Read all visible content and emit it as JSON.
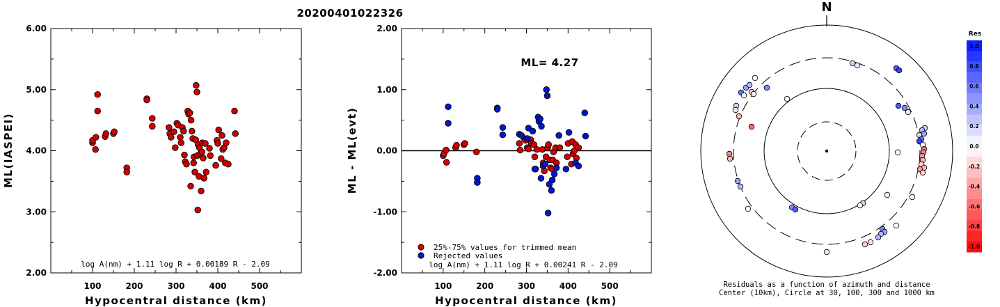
{
  "event_title": "20200401022326",
  "chart_data": [
    {
      "type": "scatter",
      "ylabel": "ML(IASPEI)",
      "xlabel": "Hypocentral distance (km)",
      "xlim": [
        0,
        600
      ],
      "ylim": [
        2.0,
        6.0
      ],
      "xticks": [
        "100",
        "200",
        "300",
        "400",
        "500"
      ],
      "yticks": [
        "2.00",
        "3.00",
        "4.00",
        "5.00",
        "6.00"
      ],
      "formula": "log A(nm) + 1.11 log R + 0.00189 R - 2.09",
      "point_color": "#d40000",
      "points": [
        [
          100,
          4.13
        ],
        [
          100,
          4.17
        ],
        [
          107,
          4.02
        ],
        [
          108,
          4.22
        ],
        [
          112,
          4.92
        ],
        [
          112,
          4.65
        ],
        [
          130,
          4.23
        ],
        [
          132,
          4.28
        ],
        [
          150,
          4.28
        ],
        [
          152,
          4.31
        ],
        [
          182,
          3.72
        ],
        [
          182,
          3.65
        ],
        [
          230,
          4.85
        ],
        [
          230,
          4.83
        ],
        [
          243,
          4.53
        ],
        [
          243,
          4.4
        ],
        [
          283,
          4.38
        ],
        [
          285,
          4.28
        ],
        [
          288,
          4.22
        ],
        [
          295,
          4.31
        ],
        [
          298,
          4.05
        ],
        [
          302,
          4.45
        ],
        [
          305,
          4.42
        ],
        [
          310,
          4.22
        ],
        [
          312,
          4.13
        ],
        [
          315,
          4.38
        ],
        [
          318,
          4.32
        ],
        [
          320,
          3.93
        ],
        [
          322,
          3.82
        ],
        [
          325,
          3.78
        ],
        [
          328,
          4.65
        ],
        [
          330,
          4.6
        ],
        [
          333,
          4.62
        ],
        [
          335,
          3.42
        ],
        [
          336,
          4.5
        ],
        [
          338,
          4.32
        ],
        [
          340,
          4.2
        ],
        [
          342,
          3.8
        ],
        [
          343,
          3.9
        ],
        [
          345,
          3.65
        ],
        [
          347,
          4.18
        ],
        [
          348,
          5.07
        ],
        [
          350,
          4.96
        ],
        [
          351,
          3.92
        ],
        [
          352,
          3.03
        ],
        [
          353,
          4.1
        ],
        [
          355,
          3.58
        ],
        [
          356,
          4.05
        ],
        [
          358,
          3.95
        ],
        [
          360,
          3.34
        ],
        [
          362,
          3.98
        ],
        [
          363,
          4.13
        ],
        [
          365,
          3.88
        ],
        [
          367,
          3.55
        ],
        [
          370,
          4.12
        ],
        [
          372,
          3.65
        ],
        [
          380,
          4.04
        ],
        [
          382,
          3.92
        ],
        [
          395,
          3.76
        ],
        [
          398,
          4.17
        ],
        [
          400,
          4.12
        ],
        [
          402,
          4.34
        ],
        [
          408,
          3.87
        ],
        [
          410,
          4.25
        ],
        [
          412,
          4.02
        ],
        [
          415,
          4.05
        ],
        [
          418,
          3.8
        ],
        [
          420,
          4.13
        ],
        [
          425,
          3.78
        ],
        [
          440,
          4.65
        ],
        [
          442,
          4.28
        ]
      ]
    },
    {
      "type": "scatter",
      "ylabel": "ML - ML(evt)",
      "xlabel": "Hypocentral distance (km)",
      "xlim": [
        0,
        600
      ],
      "ylim": [
        -2.0,
        2.0
      ],
      "xticks": [
        "100",
        "200",
        "300",
        "400",
        "500"
      ],
      "yticks": [
        "-2.00",
        "-1.00",
        "0.00",
        "1.00",
        "2.00"
      ],
      "annotation": "ML= 4.27",
      "formula": "log A(nm) + 1.11 log R + 0.00241 R - 2.09",
      "legend": [
        {
          "label": "25%-75% values for trimmed mean",
          "color": "#d40000"
        },
        {
          "label": "Rejected values",
          "color": "#0018c8"
        }
      ],
      "trimmed": [
        [
          100,
          -0.08
        ],
        [
          102,
          -0.05
        ],
        [
          107,
          0.01
        ],
        [
          108,
          -0.19
        ],
        [
          130,
          0.05
        ],
        [
          132,
          0.09
        ],
        [
          150,
          0.1
        ],
        [
          152,
          0.12
        ],
        [
          180,
          -0.02
        ],
        [
          283,
          0.12
        ],
        [
          285,
          0.01
        ],
        [
          295,
          0.2
        ],
        [
          298,
          0.17
        ],
        [
          302,
          0.05
        ],
        [
          305,
          0.03
        ],
        [
          310,
          0.18
        ],
        [
          312,
          0.12
        ],
        [
          318,
          0.1
        ],
        [
          320,
          -0.1
        ],
        [
          322,
          -0.3
        ],
        [
          325,
          0.02
        ],
        [
          338,
          0.02
        ],
        [
          340,
          -0.2
        ],
        [
          343,
          -0.33
        ],
        [
          347,
          -0.1
        ],
        [
          351,
          0.05
        ],
        [
          353,
          0.1
        ],
        [
          356,
          -0.15
        ],
        [
          358,
          -0.28
        ],
        [
          362,
          -0.3
        ],
        [
          363,
          -0.15
        ],
        [
          365,
          -0.02
        ],
        [
          370,
          0.05
        ],
        [
          372,
          -0.2
        ],
        [
          380,
          0.05
        ],
        [
          398,
          -0.1
        ],
        [
          400,
          0.12
        ],
        [
          408,
          -0.22
        ],
        [
          410,
          0.15
        ],
        [
          412,
          -0.05
        ],
        [
          415,
          0.0
        ],
        [
          418,
          0.1
        ],
        [
          420,
          -0.12
        ],
        [
          425,
          0.05
        ]
      ],
      "rejected": [
        [
          112,
          0.72
        ],
        [
          112,
          0.45
        ],
        [
          182,
          -0.45
        ],
        [
          182,
          -0.52
        ],
        [
          230,
          0.7
        ],
        [
          230,
          0.68
        ],
        [
          243,
          0.38
        ],
        [
          243,
          0.26
        ],
        [
          283,
          0.27
        ],
        [
          288,
          0.25
        ],
        [
          302,
          0.2
        ],
        [
          305,
          0.37
        ],
        [
          315,
          0.32
        ],
        [
          320,
          -0.3
        ],
        [
          328,
          0.55
        ],
        [
          330,
          0.48
        ],
        [
          333,
          0.52
        ],
        [
          335,
          -0.45
        ],
        [
          336,
          0.4
        ],
        [
          340,
          -0.25
        ],
        [
          345,
          -0.22
        ],
        [
          348,
          1.0
        ],
        [
          350,
          0.9
        ],
        [
          352,
          -1.02
        ],
        [
          355,
          -0.55
        ],
        [
          360,
          -0.65
        ],
        [
          362,
          -0.48
        ],
        [
          367,
          -0.38
        ],
        [
          372,
          -0.28
        ],
        [
          378,
          0.25
        ],
        [
          395,
          -0.3
        ],
        [
          402,
          0.3
        ],
        [
          418,
          -0.2
        ],
        [
          425,
          -0.25
        ],
        [
          440,
          0.62
        ],
        [
          442,
          0.24
        ]
      ]
    },
    {
      "type": "scatter",
      "subtype": "polar residual map",
      "north_label": "N",
      "caption_line1": "Residuals as a function of azimuth and distance",
      "caption_line2": "Center (10km), Circle at 30, 100, 300 and 1000 km",
      "colorbar_title": "Res",
      "colorbar_ticks": [
        "1.0",
        "0.8",
        "0.6",
        "0.4",
        "0.2",
        "0.0",
        "-0.2",
        "-0.4",
        "-0.6",
        "-0.8",
        "-1.0"
      ],
      "stations": [
        [
          1065,
          133,
          0.6
        ],
        [
          1072,
          126,
          0.4
        ],
        [
          1077,
          122,
          0.3
        ],
        [
          1069,
          137,
          0.0
        ],
        [
          1080,
          132,
          -0.2
        ],
        [
          1083,
          135,
          -0.1
        ],
        [
          1085,
          112,
          0.0
        ],
        [
          1102,
          126,
          0.5
        ],
        [
          1058,
          152,
          0.2
        ],
        [
          1057,
          158,
          0.1
        ],
        [
          1062,
          167,
          -0.3
        ],
        [
          1080,
          182,
          -0.6
        ],
        [
          1048,
          221,
          -0.5
        ],
        [
          1049,
          228,
          -0.3
        ],
        [
          1060,
          260,
          0.4
        ],
        [
          1064,
          268,
          0.3
        ],
        [
          1075,
          300,
          0.0
        ],
        [
          1131,
          142,
          0.0
        ],
        [
          1225,
          91,
          0.2
        ],
        [
          1232,
          94,
          0.1
        ],
        [
          1288,
          98,
          0.7
        ],
        [
          1292,
          101,
          0.8
        ],
        [
          1291,
          152,
          0.7
        ],
        [
          1300,
          155,
          0.5
        ],
        [
          1305,
          161,
          -0.1
        ],
        [
          1290,
          219,
          0.0
        ],
        [
          1329,
          184,
          0.2
        ],
        [
          1325,
          187,
          0.3
        ],
        [
          1321,
          194,
          0.2
        ],
        [
          1328,
          192,
          0.4
        ],
        [
          1324,
          200,
          0.6
        ],
        [
          1321,
          203,
          0.8
        ],
        [
          1326,
          208,
          0.0
        ],
        [
          1328,
          214,
          -0.6
        ],
        [
          1327,
          219,
          -0.5
        ],
        [
          1325,
          224,
          -0.4
        ],
        [
          1326,
          230,
          -0.3
        ],
        [
          1324,
          236,
          -0.2
        ],
        [
          1328,
          241,
          -0.3
        ],
        [
          1322,
          243,
          -0.4
        ],
        [
          1326,
          248,
          -0.2
        ],
        [
          1311,
          283,
          0.0
        ],
        [
          1275,
          280,
          0.0
        ],
        [
          1240,
          292,
          -0.2
        ],
        [
          1236,
          295,
          0.0
        ],
        [
          1138,
          298,
          0.5
        ],
        [
          1143,
          301,
          0.7
        ],
        [
          1268,
          329,
          0.5
        ],
        [
          1271,
          333,
          0.4
        ],
        [
          1266,
          336,
          0.3
        ],
        [
          1262,
          341,
          0.3
        ],
        [
          1288,
          324,
          0.0
        ],
        [
          1251,
          348,
          -0.1
        ],
        [
          1243,
          351,
          -0.2
        ],
        [
          1188,
          362,
          0.1
        ]
      ]
    }
  ]
}
